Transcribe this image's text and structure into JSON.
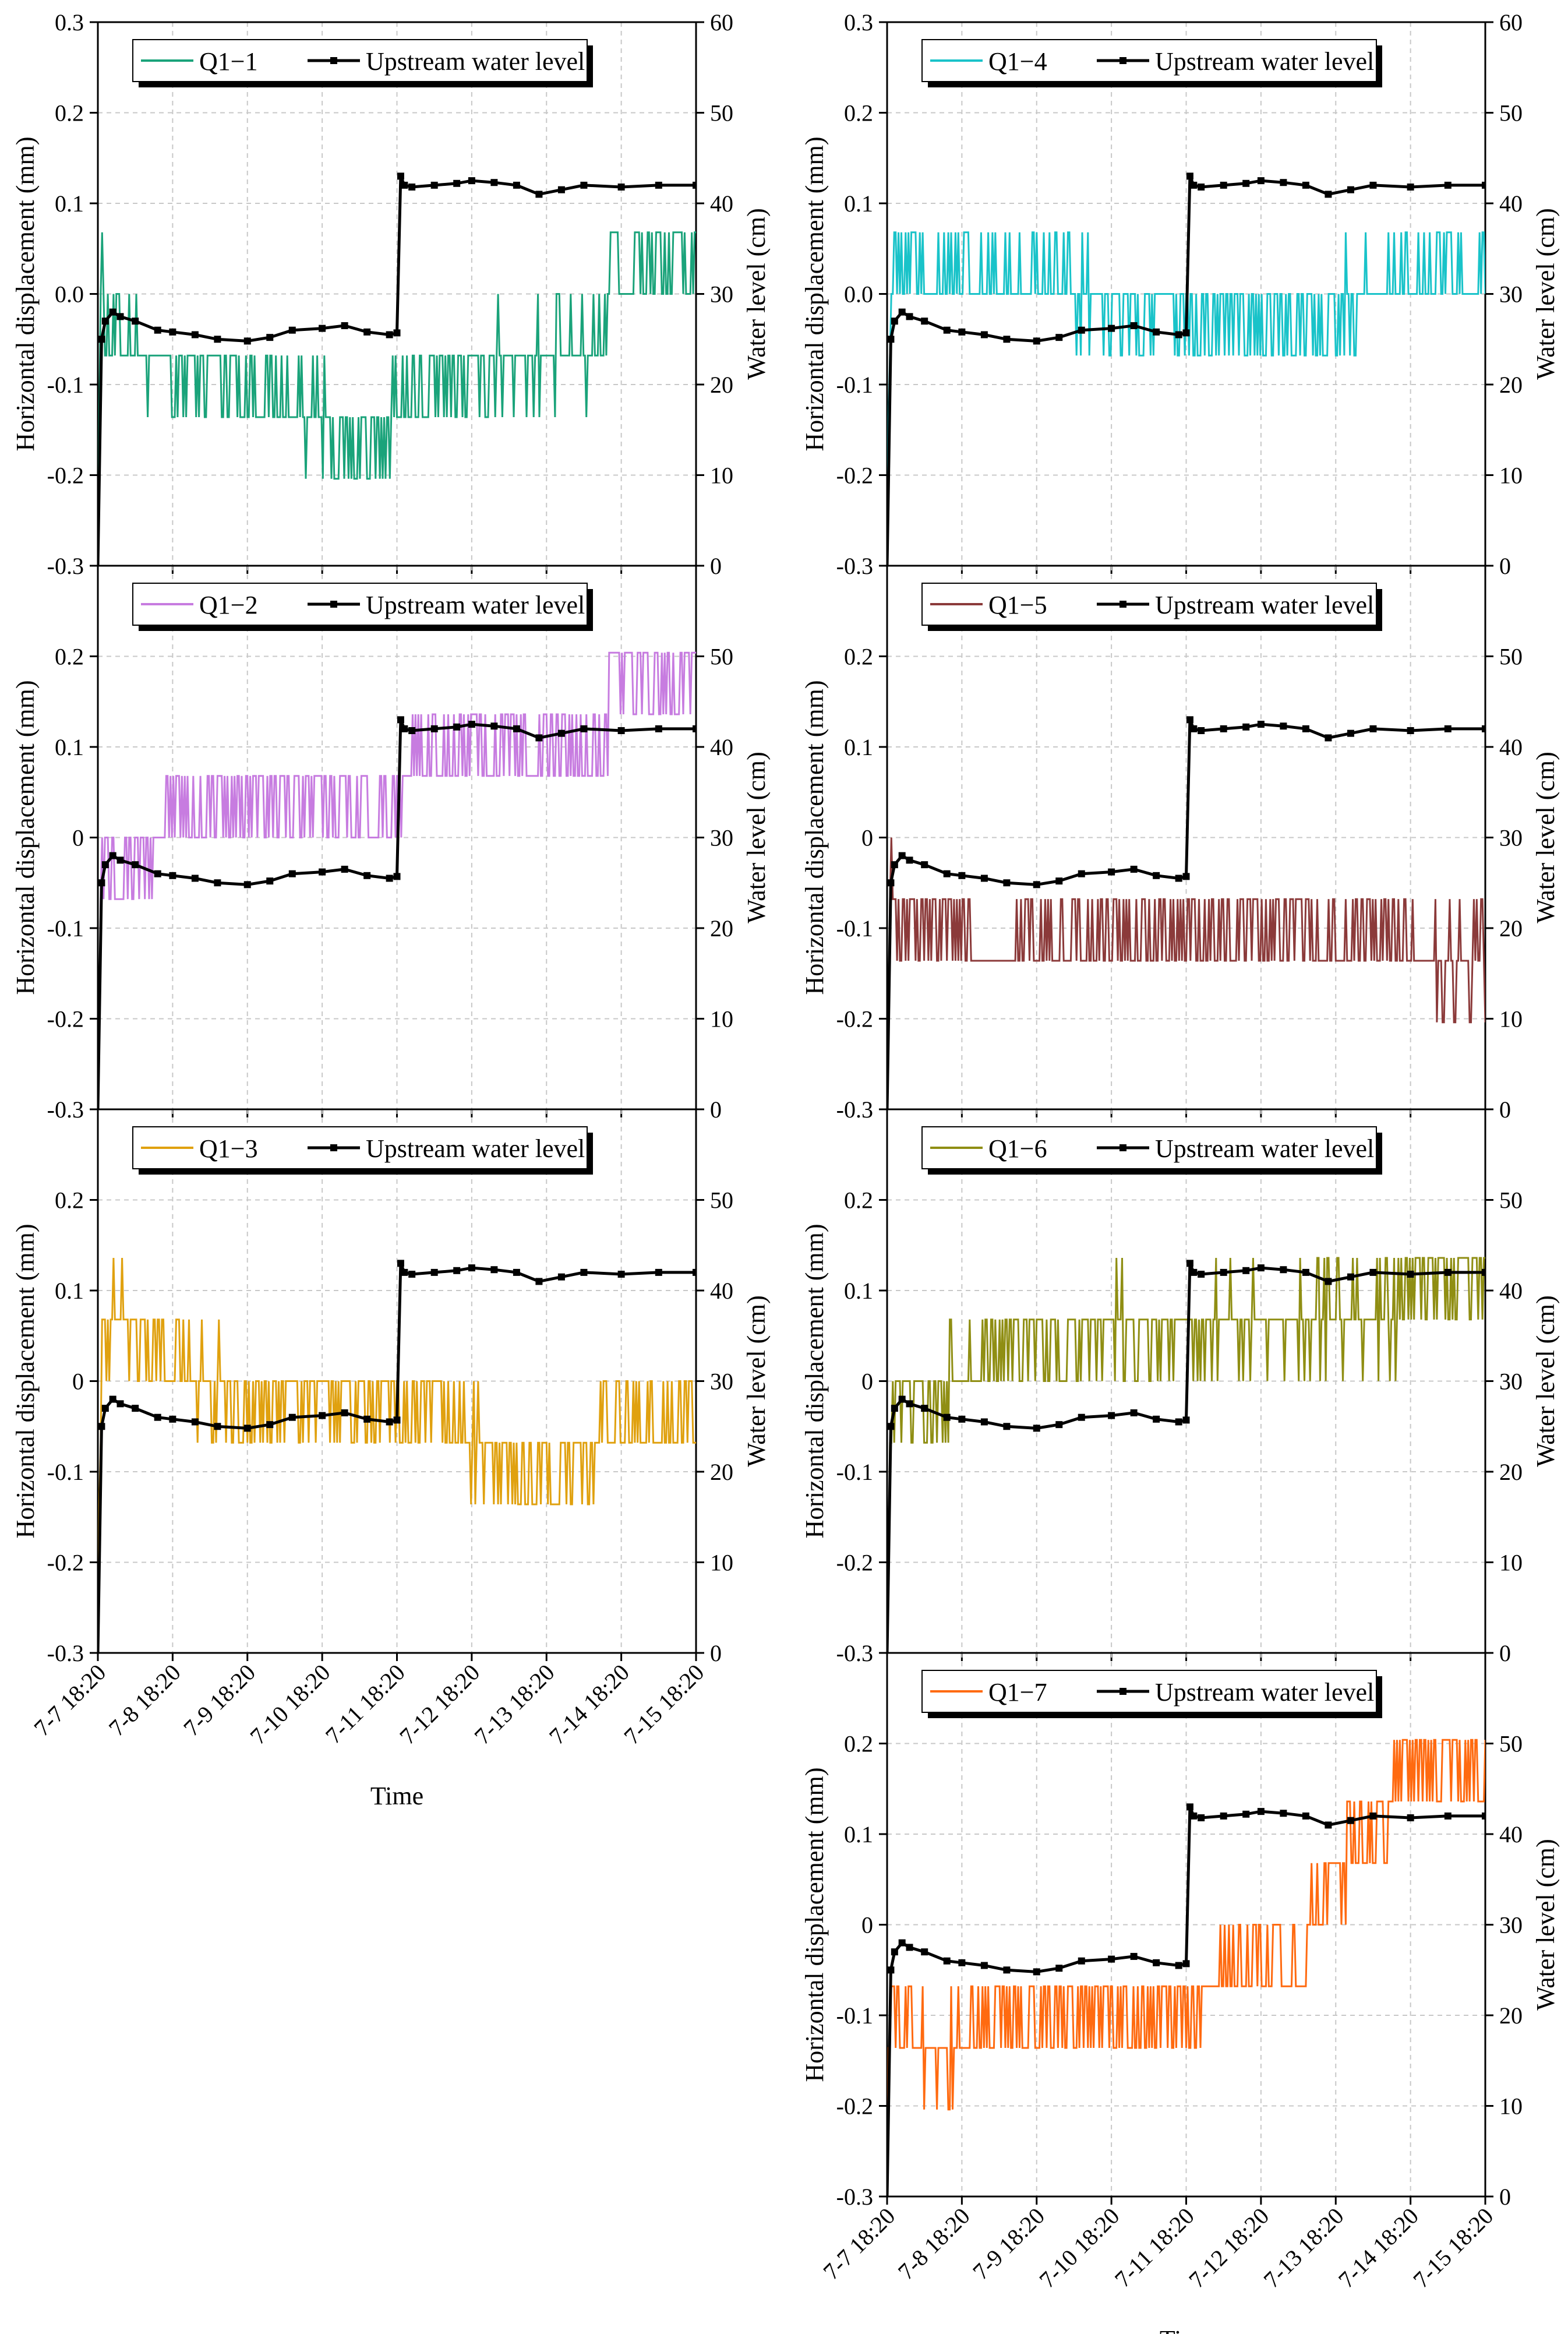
{
  "chart_data": {
    "type": "line",
    "x_tick_labels": [
      "7-7 18:20",
      "7-8 18:20",
      "7-9 18:20",
      "7-10 18:20",
      "7-11 18:20",
      "7-12 18:20",
      "7-13 18:20",
      "7-14 18:20",
      "7-15 18:20"
    ],
    "x_range_days": [
      0,
      8
    ],
    "xlabel": "Time",
    "ylabel_left": "Horizontal displacement (mm)",
    "ylabel_right": "Water level (cm)",
    "y_left_ticks": [
      "-0.3",
      "-0.2",
      "-0.1",
      "0",
      "0.1",
      "0.2",
      "0.3"
    ],
    "y_left_ticks_alt": [
      "-0.3",
      "-0.2",
      "-0.1",
      "0.0",
      "0.1",
      "0.2",
      "0.3"
    ],
    "y_left_range": [
      -0.3,
      0.3
    ],
    "y_right_range": [
      0,
      60
    ],
    "water_series_name": "Upstream water level",
    "water_level_cm": {
      "x": [
        0,
        0.05,
        0.1,
        0.2,
        0.3,
        0.5,
        0.8,
        1.0,
        1.3,
        1.6,
        2.0,
        2.3,
        2.6,
        3.0,
        3.3,
        3.6,
        3.9,
        4.0,
        4.05,
        4.1,
        4.2,
        4.5,
        4.8,
        5.0,
        5.3,
        5.6,
        5.9,
        6.2,
        6.5,
        7.0,
        7.5,
        8.0
      ],
      "y": [
        0,
        25,
        27,
        28,
        27.5,
        27,
        26,
        25.8,
        25.5,
        25,
        24.8,
        25.2,
        26,
        26.2,
        26.5,
        25.8,
        25.5,
        25.7,
        43,
        42,
        41.8,
        42,
        42.2,
        42.5,
        42.3,
        42,
        41,
        41.5,
        42,
        41.8,
        42,
        42
      ]
    },
    "panels": [
      {
        "id": "Q1-1",
        "name": "Q1−1",
        "color": "#1AA37A",
        "right_ticks": [
          "10",
          "20",
          "30",
          "40",
          "50",
          "60"
        ],
        "x": [
          0,
          0.05,
          0.1,
          0.5,
          1.0,
          1.5,
          2.0,
          2.5,
          3.0,
          3.2,
          3.6,
          4.0,
          4.5,
          5.0,
          5.5,
          6.0,
          6.5,
          6.8,
          6.85,
          7.0,
          7.5,
          8.0
        ],
        "y": [
          -0.25,
          0.05,
          -0.02,
          -0.07,
          -0.1,
          -0.08,
          -0.1,
          -0.12,
          -0.14,
          -0.17,
          -0.18,
          -0.12,
          -0.1,
          -0.08,
          -0.07,
          -0.07,
          -0.07,
          -0.05,
          0.1,
          0.03,
          0.03,
          0.04
        ]
      },
      {
        "id": "Q1-2",
        "name": "Q1−2",
        "color": "#C77CE0",
        "right_ticks": [
          "10",
          "20",
          "30",
          "40",
          "50"
        ],
        "x": [
          0,
          0.05,
          0.3,
          0.8,
          1.0,
          1.5,
          2.0,
          2.5,
          3.0,
          3.5,
          4.0,
          4.2,
          4.5,
          5.0,
          5.5,
          6.0,
          6.5,
          6.8,
          6.85,
          7.0,
          7.5,
          8.0
        ],
        "y": [
          -0.25,
          0.0,
          -0.03,
          -0.01,
          0.03,
          0.04,
          0.04,
          0.04,
          0.04,
          0.04,
          0.04,
          0.08,
          0.09,
          0.1,
          0.1,
          0.1,
          0.1,
          0.1,
          0.18,
          0.18,
          0.18,
          0.2
        ]
      },
      {
        "id": "Q1-3",
        "name": "Q1−3",
        "color": "#E0A10F",
        "right_ticks": [
          "10",
          "20",
          "30",
          "40",
          "50"
        ],
        "x": [
          0,
          0.05,
          0.2,
          0.5,
          1.0,
          1.5,
          2.0,
          2.5,
          3.0,
          3.5,
          4.0,
          4.5,
          5.0,
          5.5,
          6.0,
          6.5,
          6.8,
          7.0,
          7.5,
          8.0
        ],
        "y": [
          -0.25,
          0.02,
          0.09,
          0.05,
          0.02,
          0.0,
          -0.02,
          -0.02,
          -0.02,
          -0.02,
          -0.03,
          -0.05,
          -0.06,
          -0.1,
          -0.1,
          -0.1,
          -0.05,
          -0.04,
          -0.04,
          -0.04
        ]
      },
      {
        "id": "Q1-4",
        "name": "Q1−4",
        "color": "#19C3C9",
        "right_ticks": [
          "10",
          "20",
          "30",
          "40",
          "50",
          "60"
        ],
        "x": [
          0,
          0.05,
          0.1,
          0.5,
          1.0,
          1.5,
          2.0,
          2.5,
          3.0,
          3.5,
          4.0,
          4.5,
          5.0,
          5.5,
          6.0,
          6.5,
          7.0,
          7.5,
          8.0
        ],
        "y": [
          -0.25,
          0.02,
          0.03,
          0.03,
          0.02,
          0.02,
          0.01,
          0.0,
          -0.02,
          -0.02,
          -0.03,
          -0.03,
          -0.02,
          -0.02,
          -0.01,
          0.0,
          0.02,
          0.02,
          0.02
        ]
      },
      {
        "id": "Q1-5",
        "name": "Q1−5",
        "color": "#8B3A3A",
        "right_ticks": [
          "10",
          "20",
          "30",
          "40",
          "50"
        ],
        "x": [
          0,
          0.05,
          0.3,
          0.8,
          1.0,
          1.5,
          2.0,
          2.5,
          3.0,
          3.5,
          4.0,
          4.5,
          5.0,
          5.5,
          6.0,
          6.5,
          7.0,
          7.5,
          8.0
        ],
        "y": [
          -0.25,
          -0.06,
          -0.09,
          -0.11,
          -0.12,
          -0.13,
          -0.12,
          -0.11,
          -0.11,
          -0.1,
          -0.12,
          -0.11,
          -0.1,
          -0.11,
          -0.11,
          -0.12,
          -0.13,
          -0.14,
          -0.14
        ]
      },
      {
        "id": "Q1-6",
        "name": "Q1−6",
        "color": "#8F8E13",
        "right_ticks": [
          "10",
          "20",
          "30",
          "40",
          "50"
        ],
        "x": [
          0,
          0.05,
          0.3,
          0.8,
          1.2,
          1.5,
          2.0,
          2.5,
          3.0,
          3.5,
          4.0,
          4.5,
          5.0,
          5.5,
          6.0,
          6.5,
          6.8,
          6.9,
          7.0,
          7.5,
          8.0
        ],
        "y": [
          -0.25,
          -0.03,
          -0.02,
          -0.01,
          0.02,
          0.04,
          0.05,
          0.05,
          0.06,
          0.06,
          0.06,
          0.07,
          0.07,
          0.07,
          0.07,
          0.07,
          0.07,
          0.11,
          0.12,
          0.12,
          0.12
        ]
      },
      {
        "id": "Q1-7",
        "name": "Q1−7",
        "color": "#FF6A10",
        "right_ticks": [
          "10",
          "20",
          "30",
          "40",
          "50"
        ],
        "x": [
          0,
          0.05,
          0.3,
          0.8,
          1.2,
          1.5,
          2.0,
          2.5,
          3.0,
          3.5,
          4.0,
          4.5,
          5.0,
          5.5,
          5.8,
          6.0,
          6.3,
          6.6,
          6.8,
          7.0,
          7.5,
          8.0
        ],
        "y": [
          -0.25,
          -0.1,
          -0.12,
          -0.15,
          -0.12,
          -0.1,
          -0.09,
          -0.1,
          -0.1,
          -0.1,
          -0.09,
          -0.06,
          -0.05,
          -0.04,
          0.03,
          0.05,
          0.1,
          0.12,
          0.15,
          0.18,
          0.17,
          0.18
        ]
      }
    ]
  }
}
